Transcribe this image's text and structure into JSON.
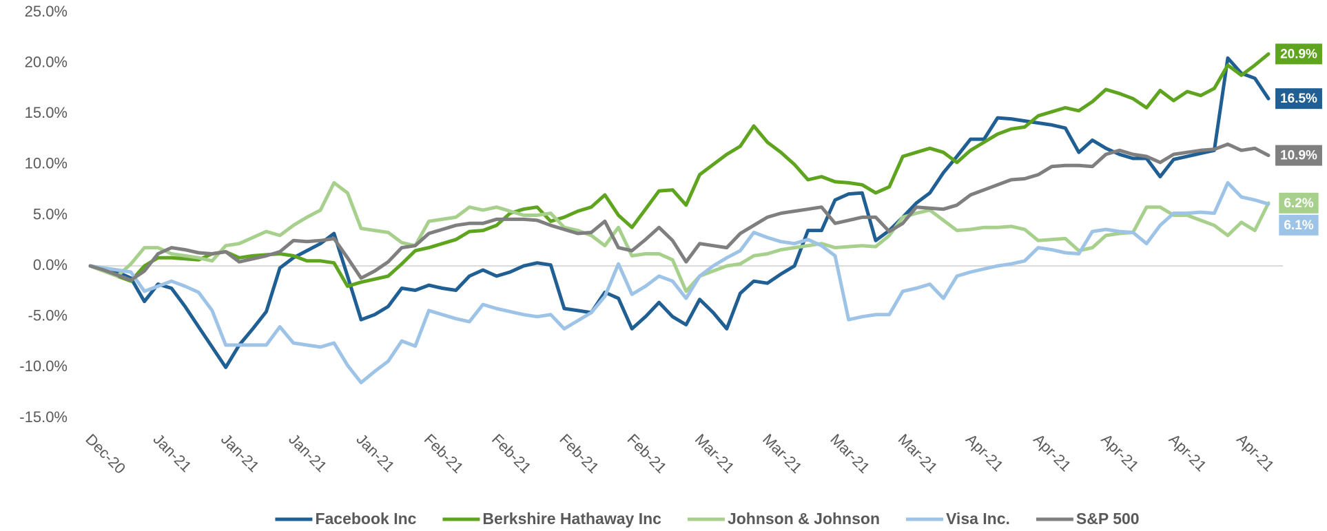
{
  "chart_data": {
    "type": "line",
    "categories": [
      "Dec-20",
      null,
      null,
      null,
      null,
      "Jan-21",
      null,
      null,
      null,
      null,
      "Jan-21",
      null,
      null,
      null,
      null,
      "Jan-21",
      null,
      null,
      null,
      null,
      "Jan-21",
      null,
      null,
      null,
      null,
      "Feb-21",
      null,
      null,
      null,
      null,
      "Feb-21",
      null,
      null,
      null,
      null,
      "Feb-21",
      null,
      null,
      null,
      null,
      "Feb-21",
      null,
      null,
      null,
      null,
      "Mar-21",
      null,
      null,
      null,
      null,
      "Mar-21",
      null,
      null,
      null,
      null,
      "Mar-21",
      null,
      null,
      null,
      null,
      "Mar-21",
      null,
      null,
      null,
      null,
      "Apr-21",
      null,
      null,
      null,
      null,
      "Apr-21",
      null,
      null,
      null,
      null,
      "Apr-21",
      null,
      null,
      null,
      null,
      "Apr-21",
      null,
      null,
      null,
      null,
      "Apr-21",
      null,
      null
    ],
    "ylim": [
      -15,
      25
    ],
    "yticks": [
      {
        "value": -15,
        "label": "-15.0%"
      },
      {
        "value": -10,
        "label": "-10.0%"
      },
      {
        "value": -5,
        "label": "-5.0%"
      },
      {
        "value": 0,
        "label": "0.0%"
      },
      {
        "value": 5,
        "label": "5.0%"
      },
      {
        "value": 10,
        "label": "10.0%"
      },
      {
        "value": 15,
        "label": "15.0%"
      },
      {
        "value": 20,
        "label": "20.0%"
      },
      {
        "value": 25,
        "label": "25.0%"
      }
    ],
    "legend": "bottom",
    "series": [
      {
        "name": "Facebook Inc",
        "color": "#205f94",
        "end_label": "16.5%",
        "values": [
          0,
          -0.3,
          -0.6,
          -1.2,
          -3.5,
          -1.8,
          -2.2,
          -4,
          -6,
          -8,
          -10,
          -7.8,
          -6.2,
          -4.5,
          -0.2,
          0.8,
          1.5,
          2.2,
          3.2,
          -1,
          -5.3,
          -4.8,
          -4,
          -2.2,
          -2.4,
          -1.9,
          -2.2,
          -2.4,
          -1.0,
          -0.4,
          -1,
          -0.6,
          0,
          0.3,
          0.1,
          -4.2,
          -4.4,
          -4.6,
          -2.6,
          -3.2,
          -6.2,
          -5,
          -3.6,
          -5,
          -5.8,
          -3.3,
          -4.6,
          -6.2,
          -2.7,
          -1.5,
          -1.7,
          -0.8,
          0,
          3.5,
          3.5,
          6.5,
          7.1,
          7.2,
          2.5,
          3.5,
          4.8,
          6.2,
          7.2,
          9.2,
          10.8,
          12.5,
          12.5,
          14.6,
          14.5,
          14.3,
          14.1,
          13.9,
          13.6,
          11.2,
          12.4,
          11.6,
          11,
          10.6,
          10.6,
          8.8,
          10.5,
          10.8,
          11.1,
          11.4,
          20.5,
          19,
          18.5,
          16.5
        ]
      },
      {
        "name": "Berkshire Hathaway Inc",
        "color": "#5ea41e",
        "end_label": "20.9%",
        "values": [
          0,
          -0.5,
          -1,
          -1.5,
          0,
          0.8,
          0.8,
          0.7,
          0.6,
          1.2,
          1.4,
          0.8,
          1,
          1.1,
          1.2,
          1.0,
          0.5,
          0.5,
          0.3,
          -2,
          -1.6,
          -1.3,
          -1,
          0.2,
          1.5,
          1.8,
          2.2,
          2.6,
          3.4,
          3.5,
          4,
          5.2,
          5.6,
          5.8,
          4.4,
          4.8,
          5.4,
          5.8,
          7,
          5,
          3.8,
          5.6,
          7.4,
          7.5,
          6.0,
          9.0,
          10,
          11,
          11.8,
          13.8,
          12.2,
          11.2,
          10,
          8.5,
          8.8,
          8.3,
          8.2,
          8.0,
          7.2,
          7.8,
          10.8,
          11.2,
          11.6,
          11.2,
          10.2,
          11.4,
          12.2,
          13,
          13.5,
          13.7,
          14.8,
          15.2,
          15.6,
          15.3,
          16.2,
          17.4,
          17,
          16.5,
          15.6,
          17.3,
          16.3,
          17.2,
          16.8,
          17.5,
          19.8,
          18.8,
          19.8,
          20.9
        ]
      },
      {
        "name": "Johnson & Johnson",
        "color": "#a8d08d",
        "end_label": "6.2%",
        "values": [
          0,
          -0.5,
          -1,
          0.2,
          1.8,
          1.8,
          1.2,
          1,
          0.8,
          0.5,
          2,
          2.2,
          2.8,
          3.4,
          3,
          4,
          4.8,
          5.5,
          8.2,
          7.2,
          3.7,
          3.5,
          3.3,
          2.3,
          2,
          4.4,
          4.6,
          4.8,
          5.8,
          5.5,
          5.8,
          5.4,
          5,
          5,
          5.2,
          3.8,
          3.5,
          3,
          2,
          3.8,
          1,
          1.2,
          1.2,
          0.6,
          -2.5,
          -1,
          -0.5,
          0,
          0.2,
          1,
          1.2,
          1.6,
          1.8,
          2,
          2.2,
          1.8,
          1.9,
          2,
          1.9,
          3,
          4.8,
          5.2,
          5.5,
          4.5,
          3.5,
          3.6,
          3.8,
          3.8,
          3.9,
          3.6,
          2.5,
          2.6,
          2.7,
          1.5,
          1.8,
          3,
          3.2,
          3.3,
          5.8,
          5.8,
          5,
          5,
          4.5,
          4,
          3,
          4.3,
          3.5,
          6.2
        ]
      },
      {
        "name": "Visa Inc.",
        "color": "#9dc3e6",
        "end_label": "6.1%",
        "values": [
          0,
          -0.2,
          -0.4,
          -0.6,
          -2.5,
          -2,
          -1.5,
          -2,
          -2.6,
          -4.4,
          -7.8,
          -7.8,
          -7.8,
          -7.8,
          -6,
          -7.6,
          -7.8,
          -8,
          -7.6,
          -9.8,
          -11.5,
          -10.4,
          -9.4,
          -7.4,
          -7.9,
          -4.4,
          -4.8,
          -5.2,
          -5.5,
          -3.8,
          -4.2,
          -4.5,
          -4.8,
          -5,
          -4.8,
          -6.2,
          -5.4,
          -4.6,
          -3,
          0.2,
          -2.8,
          -2,
          -1,
          -1.5,
          -3.2,
          -1,
          0,
          0.8,
          1.5,
          3.3,
          2.8,
          2.4,
          2.2,
          2.6,
          2,
          1,
          -5.3,
          -5,
          -4.8,
          -4.8,
          -2.5,
          -2.2,
          -1.8,
          -3.2,
          -1,
          -0.6,
          -0.3,
          0,
          0.2,
          0.5,
          1.8,
          1.6,
          1.3,
          1.2,
          3.4,
          3.6,
          3.4,
          3.3,
          2.2,
          4,
          5.2,
          5.2,
          5.3,
          5.2,
          8.2,
          6.8,
          6.5,
          6.1
        ]
      },
      {
        "name": "S&P 500",
        "color": "#7f7f7f",
        "end_label": "10.9%",
        "values": [
          0,
          -0.4,
          -0.9,
          -1.4,
          -0.5,
          1.2,
          1.8,
          1.6,
          1.3,
          1.2,
          1.4,
          0.4,
          0.7,
          1,
          1.4,
          2.5,
          2.4,
          2.5,
          2.7,
          0.8,
          -1.2,
          -0.5,
          0.4,
          1.8,
          2,
          3.2,
          3.6,
          4,
          4.2,
          4.2,
          4.6,
          4.6,
          4.6,
          4.5,
          4.0,
          3.6,
          3.2,
          3.3,
          4.4,
          1.8,
          1.5,
          2.6,
          3.8,
          2.5,
          0.4,
          2.2,
          2,
          1.8,
          3.2,
          4,
          4.8,
          5.2,
          5.4,
          5.6,
          5.8,
          4.2,
          4.5,
          4.8,
          4.8,
          3.4,
          4.2,
          5.8,
          5.7,
          5.6,
          6,
          7,
          7.5,
          8,
          8.5,
          8.6,
          9,
          9.8,
          9.9,
          9.9,
          9.8,
          11,
          11.4,
          11,
          10.8,
          10.2,
          11,
          11.2,
          11.4,
          11.5,
          12,
          11.4,
          11.6,
          10.9
        ]
      }
    ]
  }
}
